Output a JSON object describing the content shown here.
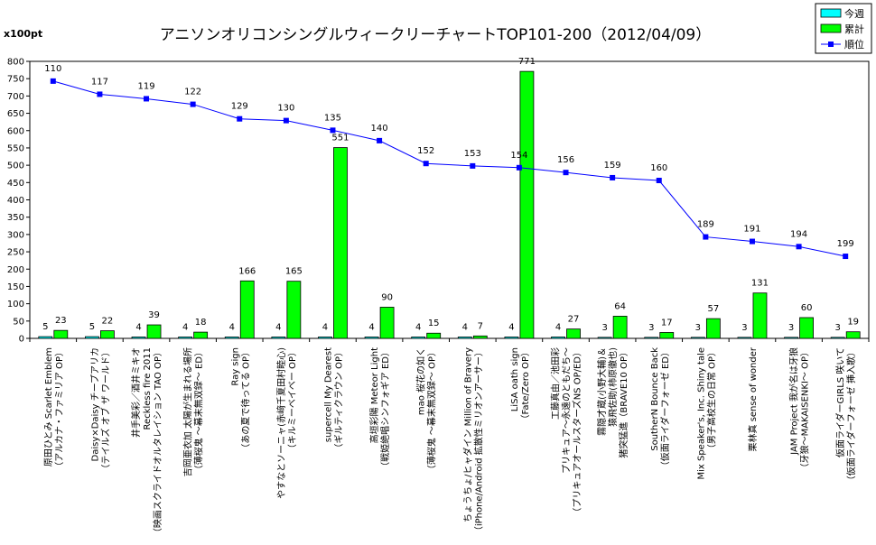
{
  "chart_data": {
    "type": "bar",
    "title": "アニソンオリコンシングルウィークリーチャートTOP101-200（2012/04/09）",
    "ylabel": "x100pt",
    "ylim": [
      0,
      800
    ],
    "yticks": [
      0,
      50,
      100,
      150,
      200,
      250,
      300,
      350,
      400,
      450,
      500,
      550,
      600,
      650,
      700,
      750,
      800
    ],
    "grid": false,
    "legend_position": "top-right",
    "categories": [
      [
        "原田ひとみ  Scarlet Emblem",
        "（アルカナ・ファミリア OP）"
      ],
      [
        "Daisy×Daisy  チープアリカ",
        "（テイルズ オブ ザ ワールド）"
      ],
      [
        "井手美彩／酒井ミキオ",
        "Reckless fire 2011",
        "（映画スクライドオルタレイション TAO OP）"
      ],
      [
        "吉岡亜衣加  太陽が生まれる場所",
        "（薄桜鬼 ～幕末無双録～ ED）"
      ],
      [
        "Ray sign",
        "（あの夏で待ってる OP）"
      ],
      [
        "やすなとソーニャ(赤﨑千夏田村睦心)",
        "（キルミーベイベー OP）"
      ],
      [
        "supercell  My Dearest",
        "（ギルティクラウン OP）"
      ],
      [
        "高垣彩陽  Meteor Light",
        "（戦姫絶唱シンフォギア ED）"
      ],
      [
        "mao  桜花の如く",
        "（薄桜鬼 ～幕末無双録～ OP）"
      ],
      [
        "ちょうちょ/ヒャダイン  Million of Bravery",
        "（iPhone/Android 拡散性ミリオンアーサー）"
      ],
      [
        "LiSA  oath sign",
        "（Fate/Zero OP）"
      ],
      [
        "工藤真由／池田彩",
        "プリキュア～永遠のともだち～",
        "（プリキュアオールスターズNS OP/ED）"
      ],
      [
        "霧隠才蔵(小野大輔)＆",
        "猿飛佐助(柿原徹也)",
        "猪突猛進（BRAVE10 OP）"
      ],
      [
        "SoutherN  Bounce Back",
        "（仮面ライダーフォーゼ ED）"
      ],
      [
        "Mix Speaker's, Inc.  Shiny tale",
        "（男子高校生の日常 OP）"
      ],
      [
        "栗林真  sense of wonder"
      ],
      [
        "JAM Project  我が名は牙狼",
        "（牙狼～MAKAISENKI～ OP）"
      ],
      [
        "仮面ライダーGIRLS  咲いて",
        "（仮面ライダーフォーゼ 挿入歌）"
      ]
    ],
    "series": [
      {
        "name": "今週",
        "type": "bar",
        "color": "#00ffff",
        "values": [
          5,
          5,
          4,
          4,
          4,
          4,
          4,
          4,
          4,
          4,
          4,
          4,
          3,
          3,
          3,
          3,
          3,
          3
        ]
      },
      {
        "name": "累計",
        "type": "bar",
        "color": "#00ff00",
        "values": [
          23,
          22,
          39,
          18,
          166,
          165,
          551,
          90,
          15,
          7,
          771,
          27,
          64,
          17,
          57,
          131,
          60,
          19
        ]
      },
      {
        "name": "順位",
        "type": "line",
        "color": "#0000ff",
        "values": [
          110,
          117,
          119,
          122,
          129,
          130,
          135,
          140,
          152,
          153,
          154,
          156,
          159,
          160,
          189,
          191,
          194,
          199
        ],
        "plot_y": [
          743,
          705,
          692,
          676,
          634,
          629,
          601,
          571,
          505,
          498,
          493,
          479,
          464,
          456,
          293,
          280,
          265,
          237
        ]
      }
    ]
  }
}
